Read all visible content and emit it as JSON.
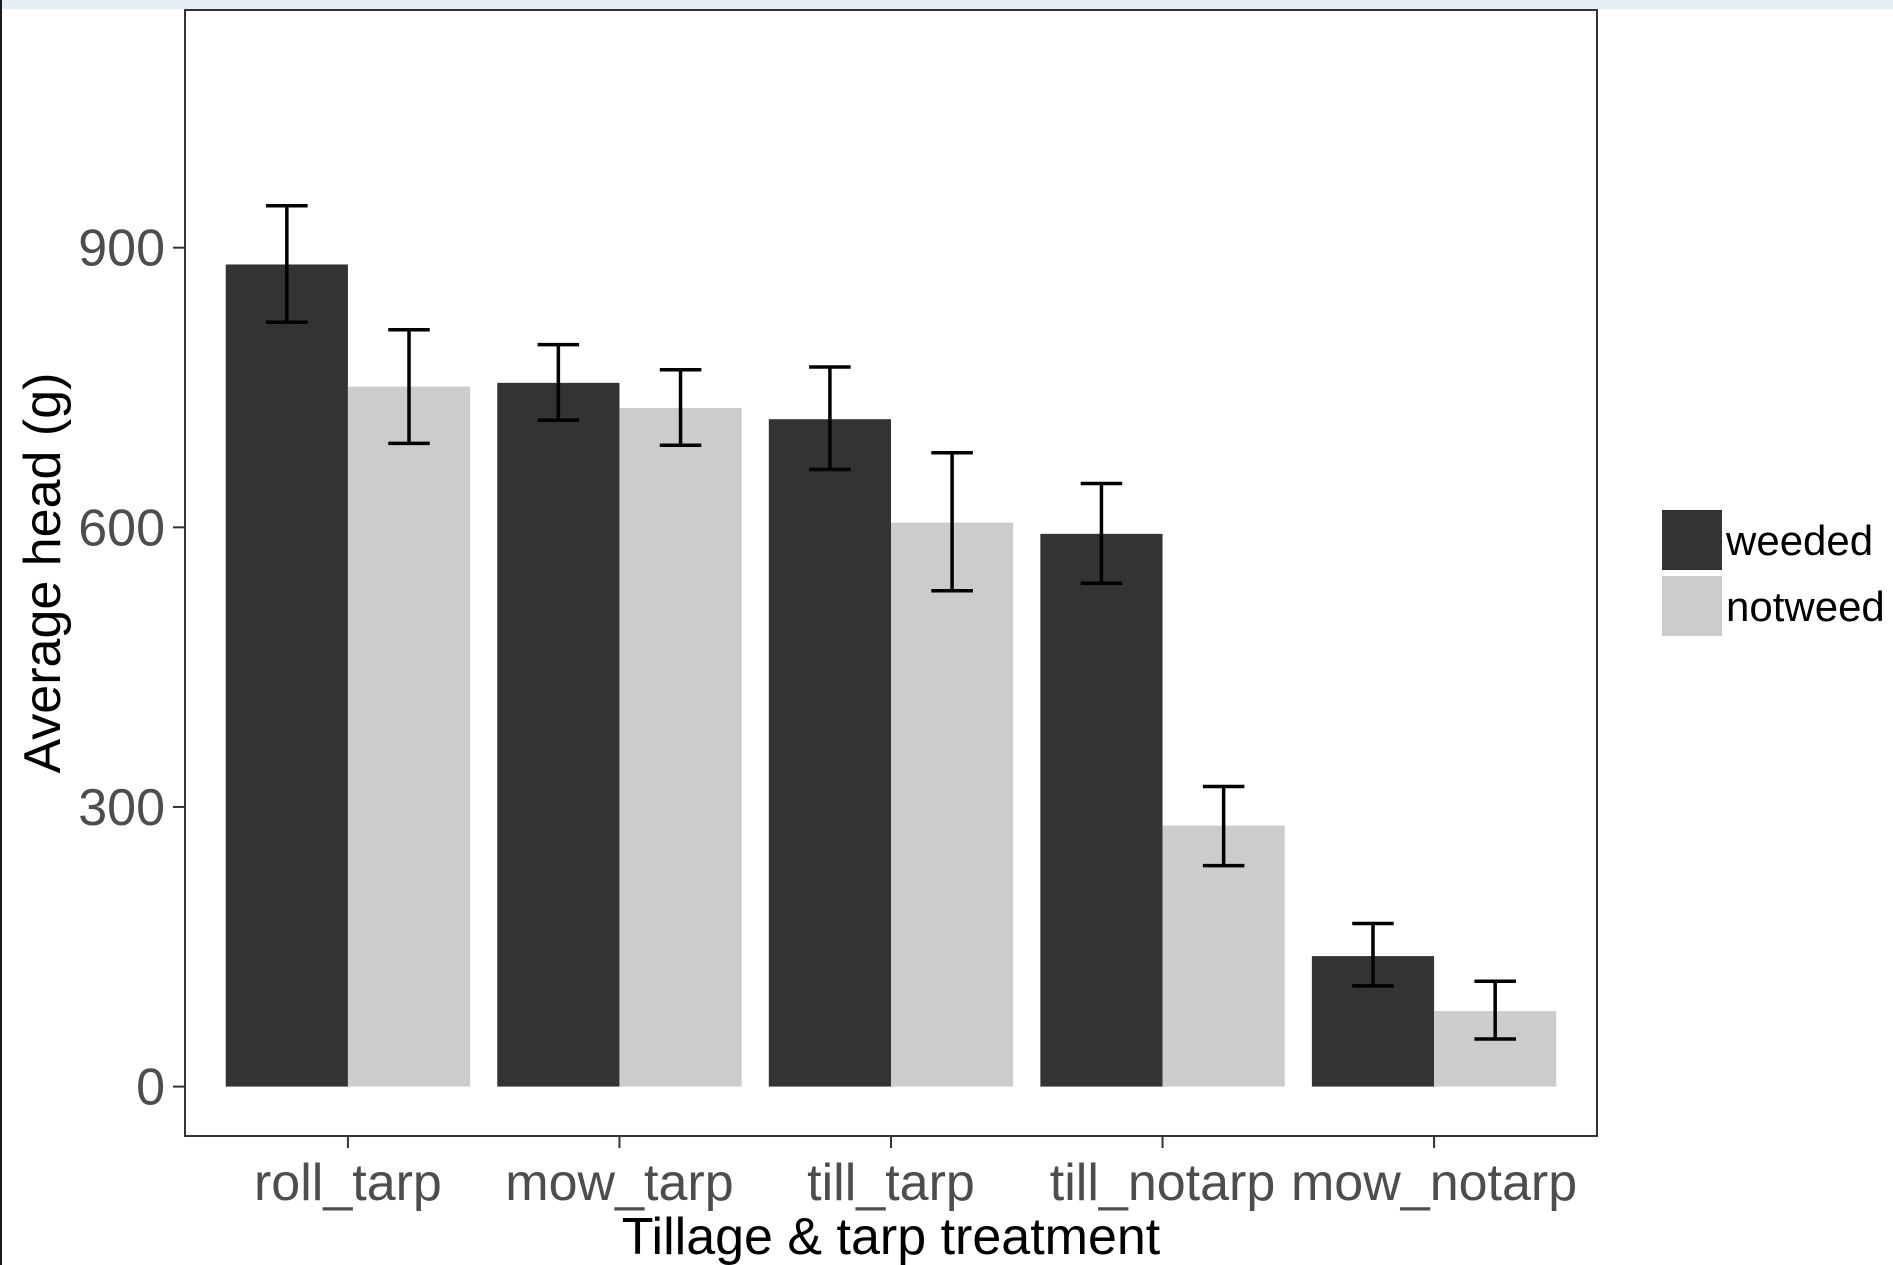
{
  "chart_data": {
    "type": "bar",
    "title": "",
    "xlabel": "Tillage & tarp treatment",
    "ylabel": "Average head (g)",
    "categories": [
      "roll_tarp",
      "mow_tarp",
      "till_tarp",
      "till_notarp",
      "mow_notarp"
    ],
    "series": [
      {
        "name": "weeded",
        "color": "#333333",
        "values": [
          882,
          755,
          716,
          593,
          140
        ],
        "error_low": [
          820,
          715,
          662,
          540,
          108
        ],
        "error_high": [
          945,
          796,
          772,
          647,
          175
        ]
      },
      {
        "name": "notweed",
        "color": "#cccccc",
        "values": [
          751,
          728,
          605,
          280,
          81
        ],
        "error_low": [
          690,
          688,
          532,
          237,
          51
        ],
        "error_high": [
          812,
          769,
          680,
          322,
          113
        ]
      }
    ],
    "ylim": [
      -53,
      1155
    ],
    "yticks": [
      "0",
      "300",
      "600",
      "900"
    ],
    "ytick_values": [
      0,
      300,
      600,
      900
    ],
    "grid": false,
    "legend_position": "right"
  }
}
